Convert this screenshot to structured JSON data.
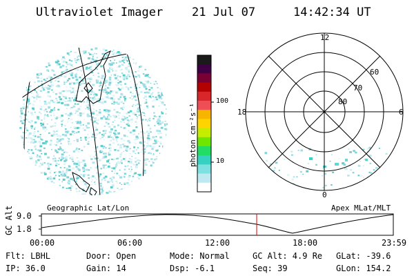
{
  "header": {
    "title": "Ultraviolet Imager",
    "date": "21 Jul 07",
    "time": "14:42:34 UT"
  },
  "colorbar": {
    "label": "photon cm⁻²s⁻¹",
    "ticks": [
      "100",
      "10"
    ],
    "colors": [
      "#1a1a1a",
      "#3d0044",
      "#7a0033",
      "#b30000",
      "#d9262b",
      "#ef4f54",
      "#f7b500",
      "#ffd400",
      "#c6ed00",
      "#6ee600",
      "#21dd63",
      "#35d2c2",
      "#7ee0e0",
      "#bfe9f0",
      "#ffffff"
    ]
  },
  "left_map": {
    "caption": "Geographic Lat/Lon"
  },
  "right_map": {
    "caption": "Apex MLat/MLT",
    "mlt_labels": {
      "top": "12",
      "left": "18",
      "right": "6",
      "bottom": "0"
    },
    "lat_labels": [
      "60",
      "70",
      "80"
    ]
  },
  "altitude_plot": {
    "axis_label": "GC Alt",
    "y_ticks": [
      "9.0",
      "1.8"
    ],
    "x_ticks": [
      "00:00",
      "06:00",
      "12:00",
      "18:00",
      "23:59"
    ],
    "current_time_fraction": 0.6129
  },
  "status": {
    "flt": "Flt: LBHL",
    "ip": "IP: 36.0",
    "door": "Door: Open",
    "gain": "Gain: 14",
    "mode": "Mode: Normal",
    "dsp": "Dsp:   -6.1",
    "gc_alt": "GC Alt: 4.9 Re",
    "seq": "Seq: 39",
    "glat": "GLat: -39.6",
    "glon": "GLon: 154.2"
  }
}
